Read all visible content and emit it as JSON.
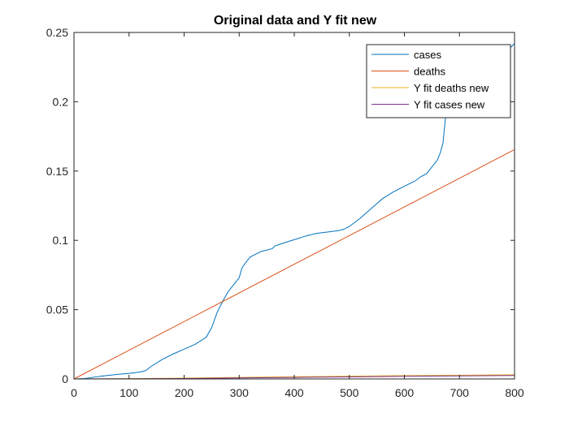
{
  "chart_data": {
    "type": "line",
    "title": "Original data and Y fit new",
    "xlabel": "",
    "ylabel": "",
    "xlim": [
      0,
      800
    ],
    "ylim": [
      0,
      0.25
    ],
    "x_ticks": [
      0,
      100,
      200,
      300,
      400,
      500,
      600,
      700,
      800
    ],
    "y_ticks": [
      0,
      0.05,
      0.1,
      0.15,
      0.2,
      0.25
    ],
    "x_tick_labels": [
      "0",
      "100",
      "200",
      "300",
      "400",
      "500",
      "600",
      "700",
      "800"
    ],
    "y_tick_labels": [
      "0",
      "0.05",
      "0.1",
      "0.15",
      "0.2",
      "0.25"
    ],
    "grid": false,
    "legend_position": "top-right",
    "series": [
      {
        "name": "cases",
        "color": "#0072BD",
        "x": [
          0,
          20,
          40,
          60,
          80,
          100,
          120,
          130,
          140,
          160,
          180,
          200,
          220,
          240,
          250,
          260,
          270,
          280,
          290,
          300,
          305,
          310,
          320,
          340,
          360,
          365,
          380,
          400,
          420,
          440,
          460,
          480,
          490,
          500,
          520,
          540,
          560,
          580,
          600,
          620,
          630,
          640,
          660,
          665,
          670,
          675,
          680,
          700,
          740,
          780,
          790,
          800
        ],
        "values": [
          0,
          0.0003,
          0.0015,
          0.0025,
          0.0033,
          0.004,
          0.005,
          0.006,
          0.009,
          0.014,
          0.018,
          0.0215,
          0.025,
          0.03,
          0.037,
          0.048,
          0.056,
          0.063,
          0.068,
          0.073,
          0.08,
          0.083,
          0.088,
          0.092,
          0.094,
          0.096,
          0.098,
          0.1005,
          0.103,
          0.105,
          0.106,
          0.107,
          0.108,
          0.11,
          0.116,
          0.123,
          0.13,
          0.135,
          0.139,
          0.143,
          0.146,
          0.148,
          0.158,
          0.163,
          0.17,
          0.19,
          0.205,
          0.215,
          0.226,
          0.235,
          0.238,
          0.242
        ]
      },
      {
        "name": "deaths",
        "color": "#D95319",
        "x": [
          0,
          800
        ],
        "values": [
          0,
          0.1655
        ]
      },
      {
        "name": "Y fit deaths new",
        "color": "#EDB120",
        "x": [
          0,
          100,
          200,
          300,
          400,
          500,
          600,
          700,
          800
        ],
        "values": [
          0,
          0.0002,
          0.0006,
          0.0011,
          0.0016,
          0.002,
          0.0024,
          0.0027,
          0.003
        ]
      },
      {
        "name": "Y fit cases new",
        "color": "#7E2F8E",
        "x": [
          0,
          100,
          200,
          300,
          400,
          500,
          600,
          700,
          800
        ],
        "values": [
          0,
          0.0001,
          0.0003,
          0.0007,
          0.0011,
          0.0015,
          0.0019,
          0.0022,
          0.0025
        ]
      }
    ]
  }
}
